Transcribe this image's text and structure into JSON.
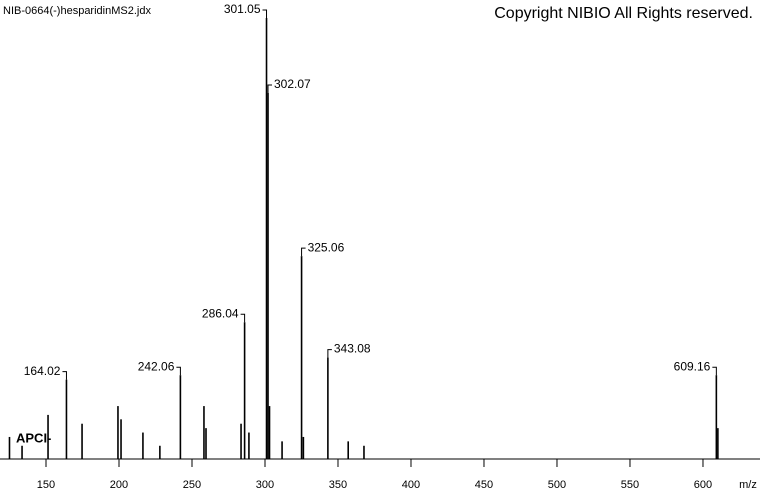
{
  "chart_data": {
    "type": "stem",
    "title": "NIB-0664(-)hesparidinMS2.jdx",
    "copyright": "Copyright NIBIO All Rights reserved.",
    "ionization": "APCI-",
    "x_label": "m/z",
    "color": "#000000",
    "xlim": [
      118.5,
      637
    ],
    "xticks": [
      150,
      200,
      250,
      300,
      350,
      400,
      450,
      500,
      550,
      600
    ],
    "ylim": [
      0,
      100
    ],
    "peaks": {
      "x": [
        164.02,
        242.06,
        286.04,
        301.05,
        302.07,
        325.06,
        343.08,
        609.16
      ],
      "values": [
        18,
        19,
        31,
        100,
        83,
        46,
        23,
        19
      ]
    },
    "minor_peaks": {
      "x": [
        125,
        133.6,
        151.4,
        174.7,
        199.3,
        201.4,
        216.4,
        228,
        258.2,
        259.6,
        283.6,
        289,
        303.1,
        311.7,
        326.3,
        357,
        367.8,
        610.2
      ],
      "values": [
        5,
        3,
        10,
        8,
        12,
        9,
        6,
        3,
        12,
        7,
        8,
        6,
        12,
        4,
        5,
        4,
        3,
        7
      ]
    }
  }
}
